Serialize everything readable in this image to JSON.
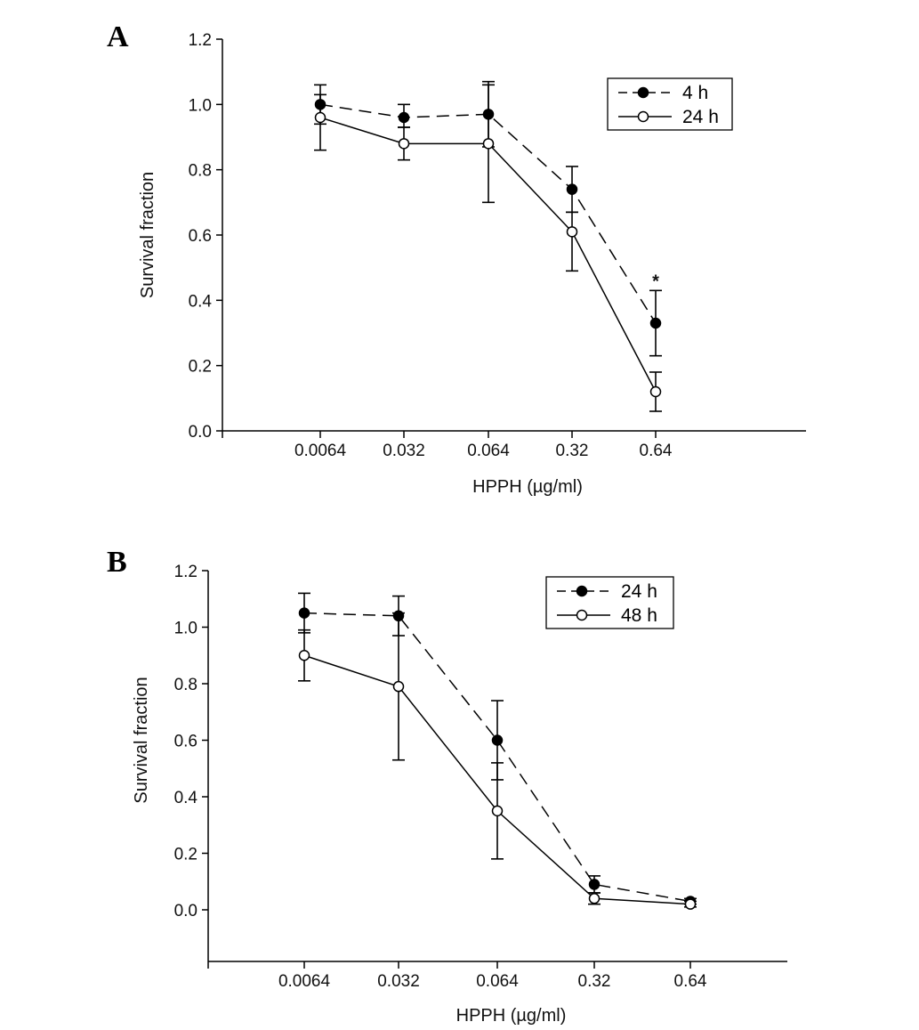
{
  "chart_data": [
    {
      "type": "line",
      "panel_label": "A",
      "categories": [
        "0.0064",
        "0.032",
        "0.064",
        "0.32",
        "0.64"
      ],
      "xlabel": "HPPH  (µg/ml)",
      "ylabel": "Survival fraction",
      "ylim": [
        0.0,
        1.2
      ],
      "yticks": [
        "0.0",
        "0.2",
        "0.4",
        "0.6",
        "0.8",
        "1.0",
        "1.2"
      ],
      "grid": false,
      "legend_position": "top-right",
      "series": [
        {
          "name": "4 h",
          "style": "dashed",
          "marker": "filled-circle",
          "values": [
            1.0,
            0.96,
            0.97,
            0.74,
            0.33
          ],
          "err_low": [
            0.94,
            0.93,
            0.87,
            0.67,
            0.23
          ],
          "err_high": [
            1.06,
            1.0,
            1.07,
            0.81,
            0.43
          ]
        },
        {
          "name": "24 h",
          "style": "solid",
          "marker": "open-circle",
          "values": [
            0.96,
            0.88,
            0.88,
            0.61,
            0.12
          ],
          "err_low": [
            0.86,
            0.83,
            0.7,
            0.49,
            0.06
          ],
          "err_high": [
            1.03,
            0.93,
            1.06,
            0.67,
            0.18
          ]
        }
      ],
      "annotations": [
        {
          "text": "*",
          "category": "0.64",
          "series": "4 h"
        }
      ]
    },
    {
      "type": "line",
      "panel_label": "B",
      "categories": [
        "0.0064",
        "0.032",
        "0.064",
        "0.32",
        "0.64"
      ],
      "xlabel": "HPPH  (µg/ml)",
      "ylabel": "Survival fraction",
      "ylim": [
        -0.2,
        1.2
      ],
      "yticks": [
        "0.0",
        "0.2",
        "0.4",
        "0.6",
        "0.8",
        "1.0",
        "1.2"
      ],
      "grid": false,
      "legend_position": "top-right",
      "series": [
        {
          "name": "24 h",
          "style": "dashed",
          "marker": "filled-circle",
          "values": [
            1.05,
            1.04,
            0.6,
            0.09,
            0.03
          ],
          "err_low": [
            0.98,
            0.97,
            0.46,
            0.06,
            0.02
          ],
          "err_high": [
            1.12,
            1.11,
            0.74,
            0.12,
            0.04
          ]
        },
        {
          "name": "48 h",
          "style": "solid",
          "marker": "open-circle",
          "values": [
            0.9,
            0.79,
            0.35,
            0.04,
            0.02
          ],
          "err_low": [
            0.81,
            0.53,
            0.18,
            0.02,
            0.01
          ],
          "err_high": [
            0.99,
            1.05,
            0.52,
            0.06,
            0.03
          ]
        }
      ],
      "annotations": []
    }
  ]
}
